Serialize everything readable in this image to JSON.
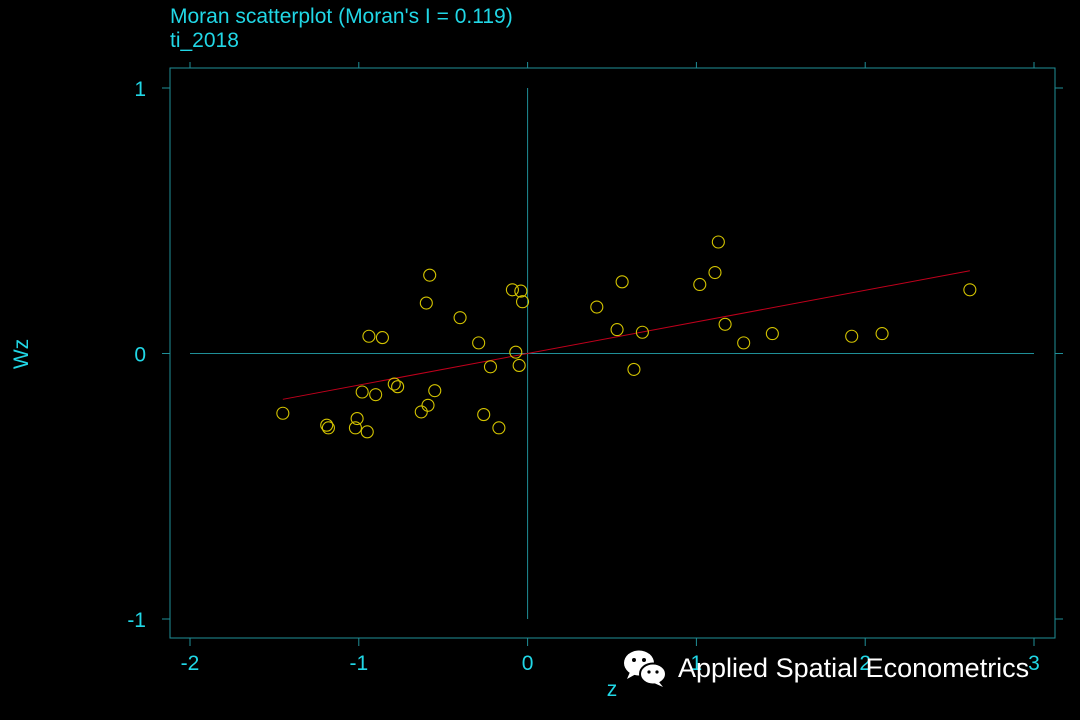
{
  "colors": {
    "background": "#000000",
    "axis_text": "#21d7e6",
    "frame": "#1f8f98",
    "reference_lines": "#1f8f98",
    "points": "#d4c400",
    "fit_line": "#c0001c",
    "watermark": "#ffffff"
  },
  "chart_data": {
    "type": "scatter",
    "title": "Moran scatterplot (Moran's I = 0.119)",
    "subtitle": "ti_2018",
    "xlabel": "z",
    "ylabel": "Wz",
    "xlim": [
      -2,
      3
    ],
    "ylim": [
      -1,
      1
    ],
    "xticks": [
      -2,
      -1,
      0,
      1,
      2,
      3
    ],
    "yticks": [
      -1,
      0,
      1
    ],
    "reference_lines": {
      "x": 0,
      "y": 0
    },
    "fit_line": {
      "slope": 0.119,
      "x_range": [
        -1.45,
        2.62
      ]
    },
    "grid": false,
    "points": [
      {
        "x": -1.45,
        "y": -0.225
      },
      {
        "x": -1.19,
        "y": -0.27
      },
      {
        "x": -1.18,
        "y": -0.28
      },
      {
        "x": -1.02,
        "y": -0.28
      },
      {
        "x": -1.01,
        "y": -0.245
      },
      {
        "x": -0.98,
        "y": -0.145
      },
      {
        "x": -0.95,
        "y": -0.295
      },
      {
        "x": -0.94,
        "y": 0.065
      },
      {
        "x": -0.9,
        "y": -0.155
      },
      {
        "x": -0.86,
        "y": 0.06
      },
      {
        "x": -0.79,
        "y": -0.115
      },
      {
        "x": -0.77,
        "y": -0.125
      },
      {
        "x": -0.63,
        "y": -0.22
      },
      {
        "x": -0.6,
        "y": 0.19
      },
      {
        "x": -0.59,
        "y": -0.195
      },
      {
        "x": -0.58,
        "y": 0.295
      },
      {
        "x": -0.55,
        "y": -0.14
      },
      {
        "x": -0.4,
        "y": 0.135
      },
      {
        "x": -0.29,
        "y": 0.04
      },
      {
        "x": -0.26,
        "y": -0.23
      },
      {
        "x": -0.22,
        "y": -0.05
      },
      {
        "x": -0.17,
        "y": -0.28
      },
      {
        "x": -0.09,
        "y": 0.24
      },
      {
        "x": -0.07,
        "y": 0.005
      },
      {
        "x": -0.05,
        "y": -0.045
      },
      {
        "x": -0.04,
        "y": 0.235
      },
      {
        "x": -0.03,
        "y": 0.195
      },
      {
        "x": 0.41,
        "y": 0.175
      },
      {
        "x": 0.53,
        "y": 0.09
      },
      {
        "x": 0.56,
        "y": 0.27
      },
      {
        "x": 0.63,
        "y": -0.06
      },
      {
        "x": 0.68,
        "y": 0.08
      },
      {
        "x": 1.02,
        "y": 0.26
      },
      {
        "x": 1.11,
        "y": 0.305
      },
      {
        "x": 1.13,
        "y": 0.42
      },
      {
        "x": 1.17,
        "y": 0.11
      },
      {
        "x": 1.28,
        "y": 0.04
      },
      {
        "x": 1.45,
        "y": 0.075
      },
      {
        "x": 1.92,
        "y": 0.065
      },
      {
        "x": 2.1,
        "y": 0.075
      },
      {
        "x": 2.62,
        "y": 0.24
      }
    ]
  },
  "watermark": {
    "text": "Applied Spatial Econometrics",
    "icon": "wechat-icon"
  }
}
